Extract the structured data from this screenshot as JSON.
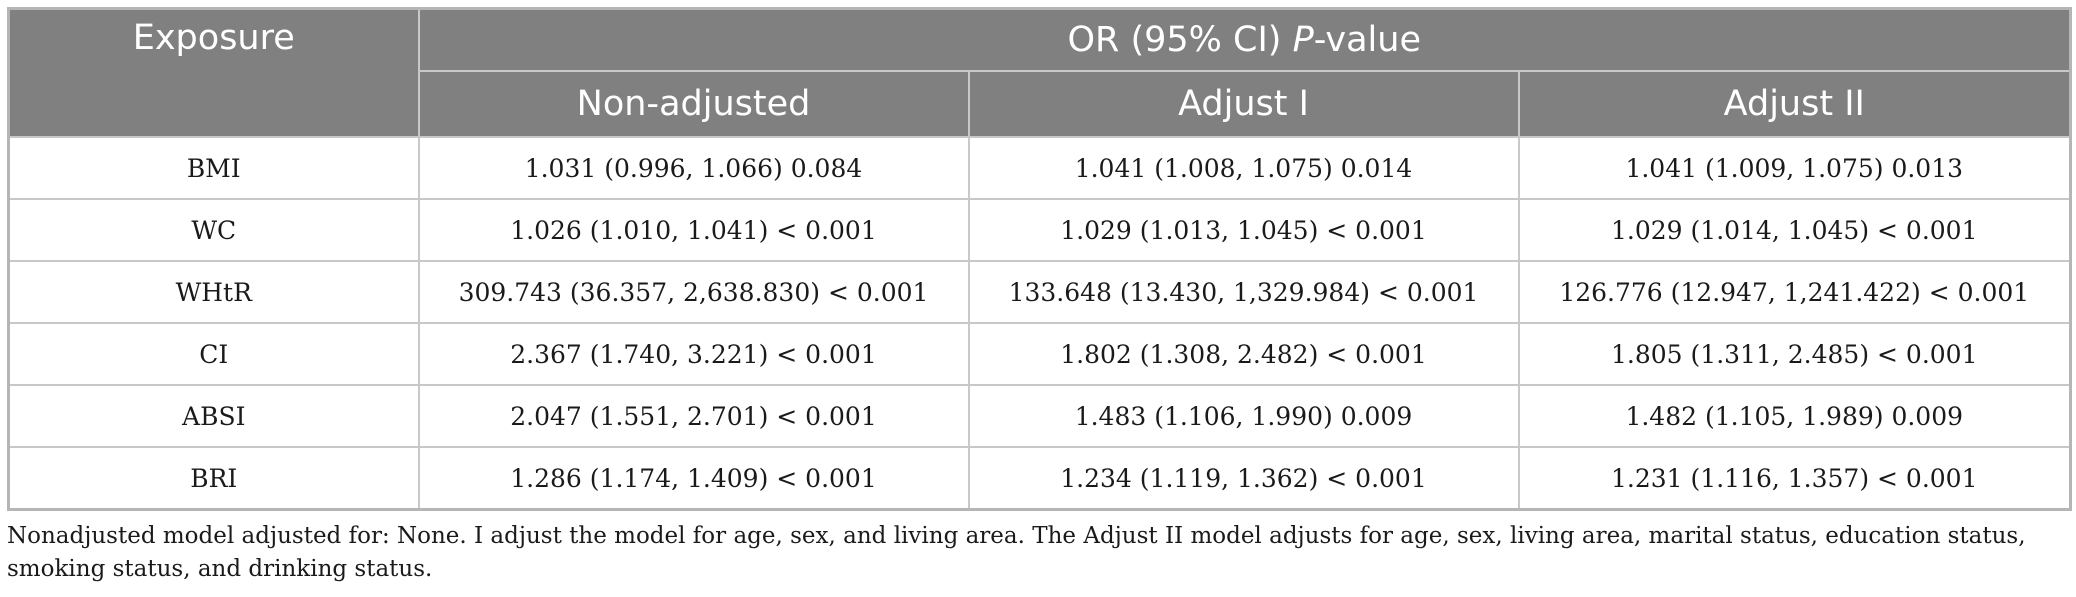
{
  "table": {
    "header": {
      "exposure": "Exposure",
      "group_prefix": "OR (95% CI) ",
      "group_italic": "P",
      "group_suffix": "-value",
      "columns": [
        "Non-adjusted",
        "Adjust I",
        "Adjust II"
      ]
    },
    "rows": [
      {
        "exposure": "BMI",
        "values": [
          "1.031 (0.996, 1.066) 0.084",
          "1.041 (1.008, 1.075) 0.014",
          "1.041 (1.009, 1.075) 0.013"
        ]
      },
      {
        "exposure": "WC",
        "values": [
          "1.026 (1.010, 1.041) < 0.001",
          "1.029 (1.013, 1.045) < 0.001",
          "1.029 (1.014, 1.045) < 0.001"
        ]
      },
      {
        "exposure": "WHtR",
        "values": [
          "309.743 (36.357, 2,638.830) < 0.001",
          "133.648 (13.430, 1,329.984) < 0.001",
          "126.776 (12.947, 1,241.422) < 0.001"
        ]
      },
      {
        "exposure": "CI",
        "values": [
          "2.367 (1.740, 3.221) < 0.001",
          "1.802 (1.308, 2.482) < 0.001",
          "1.805 (1.311, 2.485) < 0.001"
        ]
      },
      {
        "exposure": "ABSI",
        "values": [
          "2.047 (1.551, 2.701) < 0.001",
          "1.483 (1.106, 1.990) 0.009",
          "1.482 (1.105, 1.989) 0.009"
        ]
      },
      {
        "exposure": "BRI",
        "values": [
          "1.286 (1.174, 1.409) < 0.001",
          "1.234 (1.119, 1.362) < 0.001",
          "1.231 (1.116, 1.357) < 0.001"
        ]
      }
    ]
  },
  "footnote": "Nonadjusted model adjusted for: None. I adjust the model for age, sex, and living area. The Adjust II model adjusts for age, sex, living area, marital status, education status, smoking status, and drinking status.",
  "colors": {
    "header_bg": "#808080",
    "header_text": "#ffffff",
    "border": "#c8c8c8",
    "body_text": "#1a1a1a"
  }
}
